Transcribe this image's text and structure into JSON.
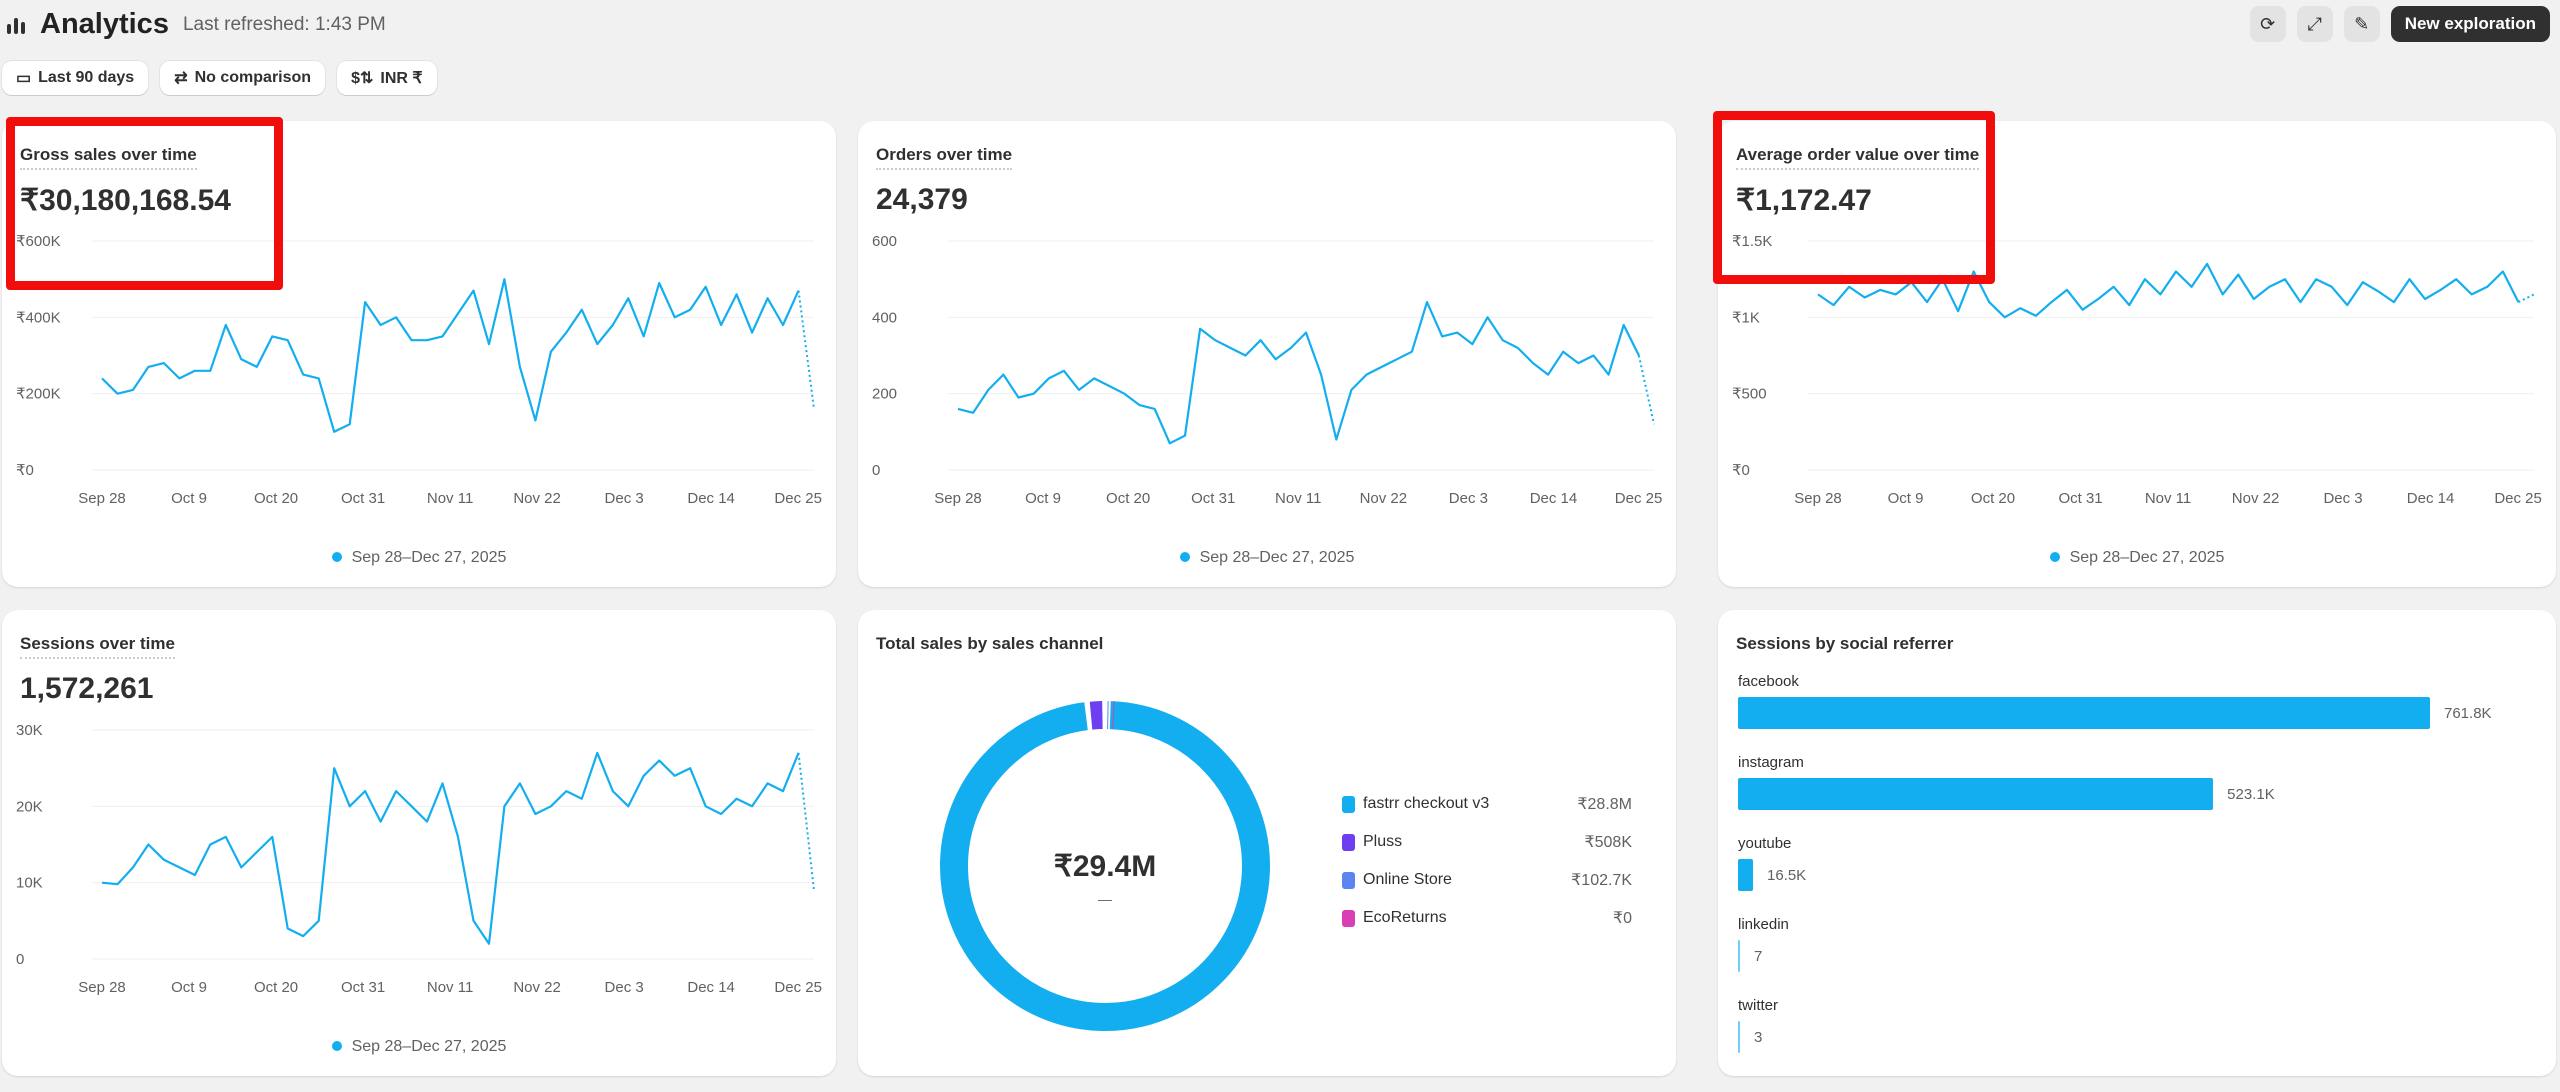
{
  "header": {
    "title": "Analytics",
    "refreshed": "Last refreshed: 1:43 PM",
    "icon": "bar-chart-icon"
  },
  "filters": [
    {
      "label": "Last 90 days",
      "icon": "calendar-icon"
    },
    {
      "label": "No comparison",
      "icon": "calendar-compare-icon"
    },
    {
      "label": "INR ₹",
      "icon": "currency-exchange-icon"
    }
  ],
  "toolbar": {
    "icons": [
      "refresh-icon",
      "expand-icon",
      "edit-icon"
    ],
    "new_exploration": "New exploration"
  },
  "legend_range": "Sep 28–Dec 27, 2025",
  "colors": {
    "series": "#13aef0",
    "annotation": "#f20d0d"
  },
  "chart_data": [
    {
      "id": "gross",
      "type": "line",
      "title": "Gross sales over time",
      "total": "₹30,180,168.54",
      "yticks": [
        "₹0",
        "₹200K",
        "₹400K",
        "₹600K"
      ],
      "ylim": [
        0,
        600000
      ],
      "xticks": [
        "Sep 28",
        "Oct 9",
        "Oct 20",
        "Oct 31",
        "Nov 11",
        "Nov 22",
        "Dec 3",
        "Dec 14",
        "Dec 25"
      ],
      "legend": "Sep 28–Dec 27, 2025",
      "values": [
        240000,
        200000,
        210000,
        270000,
        280000,
        240000,
        260000,
        260000,
        380000,
        290000,
        270000,
        350000,
        340000,
        250000,
        240000,
        100000,
        120000,
        440000,
        380000,
        400000,
        340000,
        340000,
        350000,
        410000,
        470000,
        330000,
        500000,
        270000,
        130000,
        310000,
        360000,
        420000,
        330000,
        380000,
        450000,
        350000,
        490000,
        400000,
        420000,
        480000,
        380000,
        460000,
        360000,
        450000,
        380000,
        470000,
        160000
      ]
    },
    {
      "id": "orders",
      "type": "line",
      "title": "Orders over time",
      "total": "24,379",
      "yticks": [
        "0",
        "200",
        "400",
        "600"
      ],
      "ylim": [
        0,
        600
      ],
      "xticks": [
        "Sep 28",
        "Oct 9",
        "Oct 20",
        "Oct 31",
        "Nov 11",
        "Nov 22",
        "Dec 3",
        "Dec 14",
        "Dec 25"
      ],
      "legend": "Sep 28–Dec 27, 2025",
      "values": [
        160,
        150,
        210,
        250,
        190,
        200,
        240,
        260,
        210,
        240,
        220,
        200,
        170,
        160,
        70,
        90,
        370,
        340,
        320,
        300,
        340,
        290,
        320,
        360,
        250,
        80,
        210,
        250,
        270,
        290,
        310,
        440,
        350,
        360,
        330,
        400,
        340,
        320,
        280,
        250,
        310,
        280,
        300,
        250,
        380,
        300,
        120
      ]
    },
    {
      "id": "aov",
      "type": "line",
      "title": "Average order value over time",
      "total": "₹1,172.47",
      "yticks": [
        "₹0",
        "₹500",
        "₹1K",
        "₹1.5K"
      ],
      "ylim": [
        0,
        1500
      ],
      "xticks": [
        "Sep 28",
        "Oct 9",
        "Oct 20",
        "Oct 31",
        "Nov 11",
        "Nov 22",
        "Dec 3",
        "Dec 14",
        "Dec 25"
      ],
      "legend": "Sep 28–Dec 27, 2025",
      "values": [
        1150,
        1080,
        1200,
        1130,
        1180,
        1150,
        1230,
        1100,
        1250,
        1040,
        1300,
        1100,
        1000,
        1060,
        1010,
        1100,
        1180,
        1050,
        1120,
        1200,
        1080,
        1250,
        1150,
        1300,
        1200,
        1350,
        1150,
        1280,
        1120,
        1200,
        1250,
        1100,
        1250,
        1200,
        1080,
        1230,
        1170,
        1100,
        1250,
        1120,
        1180,
        1250,
        1150,
        1200,
        1300,
        1100,
        1150
      ]
    },
    {
      "id": "sessions",
      "type": "line",
      "title": "Sessions over time",
      "total": "1,572,261",
      "yticks": [
        "0",
        "10K",
        "20K",
        "30K"
      ],
      "ylim": [
        0,
        30000
      ],
      "xticks": [
        "Sep 28",
        "Oct 9",
        "Oct 20",
        "Oct 31",
        "Nov 11",
        "Nov 22",
        "Dec 3",
        "Dec 14",
        "Dec 25"
      ],
      "legend": "Sep 28–Dec 27, 2025",
      "values": [
        10000,
        9800,
        12000,
        15000,
        13000,
        12000,
        11000,
        15000,
        16000,
        12000,
        14000,
        16000,
        4000,
        3000,
        5000,
        25000,
        20000,
        22000,
        18000,
        22000,
        20000,
        18000,
        23000,
        16000,
        5000,
        2000,
        20000,
        23000,
        19000,
        20000,
        22000,
        21000,
        27000,
        22000,
        20000,
        24000,
        26000,
        24000,
        25000,
        20000,
        19000,
        21000,
        20000,
        23000,
        22000,
        27000,
        9000
      ]
    },
    {
      "id": "channel",
      "type": "pie",
      "title": "Total sales by sales channel",
      "center": "₹29.4M",
      "center_sub": "—",
      "slices": [
        {
          "name": "fastrr checkout v3",
          "value": 28800000,
          "label": "₹28.8M",
          "color": "#13aef0"
        },
        {
          "name": "Pluss",
          "value": 508000,
          "label": "₹508K",
          "color": "#6e3ef0"
        },
        {
          "name": "Online Store",
          "value": 102700,
          "label": "₹102.7K",
          "color": "#5b84f0"
        },
        {
          "name": "EcoReturns",
          "value": 0,
          "label": "₹0",
          "color": "#d93fb5"
        }
      ]
    },
    {
      "id": "social",
      "type": "bar",
      "title": "Sessions by social referrer",
      "categories": [
        "facebook",
        "instagram",
        "youtube",
        "linkedin",
        "twitter"
      ],
      "values": [
        761800,
        523100,
        16500,
        7,
        3
      ],
      "labels": [
        "761.8K",
        "523.1K",
        "16.5K",
        "7",
        "3"
      ]
    }
  ]
}
